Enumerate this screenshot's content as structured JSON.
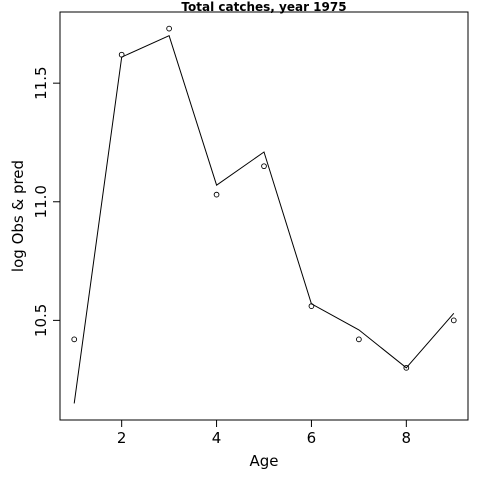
{
  "chart_data": {
    "type": "line",
    "title": "Total catches, year 1975",
    "xlabel": "Age",
    "ylabel": "log Obs & pred",
    "xlim": [
      0.7,
      9.3
    ],
    "ylim": [
      10.08,
      11.8
    ],
    "x_ticks": [
      2,
      4,
      6,
      8
    ],
    "y_ticks": [
      10.5,
      11.0,
      11.5
    ],
    "x_tick_labels": [
      "2",
      "4",
      "6",
      "8"
    ],
    "y_tick_labels": [
      "10.5",
      "11.0",
      "11.5"
    ],
    "grid": false,
    "legend": "none",
    "series": [
      {
        "kind": "points",
        "marker": "open-circle",
        "x": [
          1,
          2,
          3,
          4,
          5,
          6,
          7,
          8,
          9
        ],
        "y": [
          10.42,
          11.62,
          11.73,
          11.03,
          11.15,
          10.56,
          10.42,
          10.3,
          10.5
        ]
      },
      {
        "kind": "line",
        "x": [
          1,
          2,
          3,
          4,
          5,
          6,
          7,
          8,
          9
        ],
        "y": [
          10.15,
          11.61,
          11.7,
          11.07,
          11.21,
          10.57,
          10.46,
          10.3,
          10.53
        ]
      }
    ]
  }
}
